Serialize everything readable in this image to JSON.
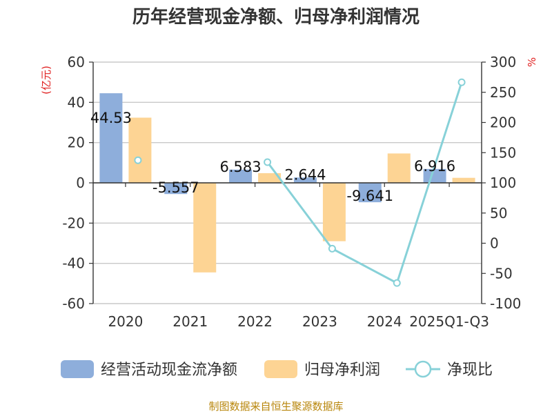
{
  "chart_data": {
    "type": "bar",
    "title": "历年经营现金净额、归母净利润情况",
    "categories": [
      "2020",
      "2021",
      "2022",
      "2023",
      "2024",
      "2025Q1-Q3"
    ],
    "series": [
      {
        "name": "经营活动现金流净额",
        "type": "bar",
        "axis": "left",
        "color": "#8eaedb",
        "values": [
          44.53,
          -5.557,
          6.583,
          2.644,
          -9.641,
          6.916
        ]
      },
      {
        "name": "归母净利润",
        "type": "bar",
        "axis": "left",
        "color": "#fdd494",
        "values": [
          32.4,
          -44.5,
          4.8,
          -29.0,
          14.6,
          2.5
        ]
      },
      {
        "name": "净现比",
        "type": "line",
        "axis": "right",
        "color": "#87d1d8",
        "values": [
          137.4,
          null,
          134.3,
          -9.0,
          -65.9,
          266.6
        ]
      }
    ],
    "data_labels": [
      "44.53",
      "-5.557",
      "6.583",
      "2.644",
      "-9.641",
      "6.916"
    ],
    "left_axis": {
      "unit": "(亿元)",
      "ylim": [
        -60,
        60
      ],
      "ticks": [
        60,
        40,
        20,
        0,
        -20,
        -40,
        -60
      ]
    },
    "right_axis": {
      "unit": "%",
      "ylim": [
        -100,
        300
      ],
      "ticks": [
        300,
        250,
        200,
        150,
        100,
        50,
        0,
        -50,
        -100
      ]
    },
    "grid": true,
    "legend_position": "bottom"
  },
  "source_text": "制图数据来自恒生聚源数据库"
}
